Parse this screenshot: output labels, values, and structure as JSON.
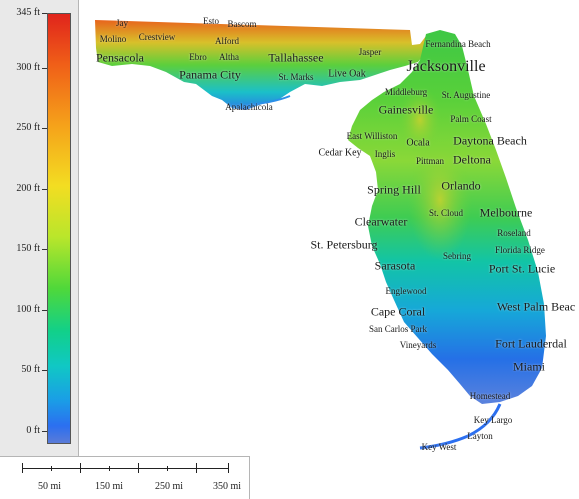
{
  "legend": {
    "unit": "ft",
    "max_label": "345 ft",
    "ticks": [
      {
        "label": "345 ft",
        "value": 345
      },
      {
        "label": "300 ft",
        "value": 300
      },
      {
        "label": "250 ft",
        "value": 250
      },
      {
        "label": "200 ft",
        "value": 200
      },
      {
        "label": "150 ft",
        "value": 150
      },
      {
        "label": "100 ft",
        "value": 100
      },
      {
        "label": "50 ft",
        "value": 50
      },
      {
        "label": "0 ft",
        "value": 0
      }
    ],
    "gradient_colors": [
      "#e0241c",
      "#f5a21a",
      "#f3dd22",
      "#4fd83a",
      "#10c8c4",
      "#2b6ff0"
    ]
  },
  "scale_bar": {
    "labels": [
      "50 mi",
      "150 mi",
      "250 mi",
      "350 mi"
    ]
  },
  "map": {
    "region": "Florida",
    "land_low_color": "#2a6fe0",
    "land_high_color": "#e0241c",
    "cities": [
      {
        "name": "Jay",
        "size": "s1"
      },
      {
        "name": "Esto",
        "size": "s1"
      },
      {
        "name": "Bascom",
        "size": "s1"
      },
      {
        "name": "Molino",
        "size": "s1"
      },
      {
        "name": "Crestview",
        "size": "s1"
      },
      {
        "name": "Alford",
        "size": "s1"
      },
      {
        "name": "Pensacola",
        "size": "s3"
      },
      {
        "name": "Ebro",
        "size": "s1"
      },
      {
        "name": "Altha",
        "size": "s1"
      },
      {
        "name": "Tallahassee",
        "size": "s3"
      },
      {
        "name": "Panama City",
        "size": "s3"
      },
      {
        "name": "St. Marks",
        "size": "s1"
      },
      {
        "name": "Live Oak",
        "size": "s2"
      },
      {
        "name": "Jasper",
        "size": "s1"
      },
      {
        "name": "Fernandina Beach",
        "size": "s1"
      },
      {
        "name": "Jacksonville",
        "size": "s4"
      },
      {
        "name": "Apalachicola",
        "size": "s1"
      },
      {
        "name": "Middleburg",
        "size": "s1"
      },
      {
        "name": "St. Augustine",
        "size": "s1"
      },
      {
        "name": "Gainesville",
        "size": "s3"
      },
      {
        "name": "Palm Coast",
        "size": "s1"
      },
      {
        "name": "East Williston",
        "size": "s1"
      },
      {
        "name": "Daytona Beach",
        "size": "s3"
      },
      {
        "name": "Cedar Key",
        "size": "s2"
      },
      {
        "name": "Ocala",
        "size": "s2"
      },
      {
        "name": "Inglis",
        "size": "s1"
      },
      {
        "name": "Pittman",
        "size": "s1"
      },
      {
        "name": "Deltona",
        "size": "s3"
      },
      {
        "name": "Spring Hill",
        "size": "s3"
      },
      {
        "name": "Orlando",
        "size": "s3"
      },
      {
        "name": "St. Cloud",
        "size": "s1"
      },
      {
        "name": "Melbourne",
        "size": "s3"
      },
      {
        "name": "Clearwater",
        "size": "s3"
      },
      {
        "name": "Roseland",
        "size": "s1"
      },
      {
        "name": "St. Petersburg",
        "size": "s3"
      },
      {
        "name": "Florida Ridge",
        "size": "s1"
      },
      {
        "name": "Sebring",
        "size": "s1"
      },
      {
        "name": "Sarasota",
        "size": "s3"
      },
      {
        "name": "Port St. Lucie",
        "size": "s3"
      },
      {
        "name": "Englewood",
        "size": "s1"
      },
      {
        "name": "West Palm Beac",
        "size": "s3"
      },
      {
        "name": "Cape Coral",
        "size": "s3"
      },
      {
        "name": "San Carlos Park",
        "size": "s1"
      },
      {
        "name": "Fort Lauderdal",
        "size": "s3"
      },
      {
        "name": "Vineyards",
        "size": "s1"
      },
      {
        "name": "Miami",
        "size": "s3"
      },
      {
        "name": "Homestead",
        "size": "s1"
      },
      {
        "name": "Key Largo",
        "size": "s1"
      },
      {
        "name": "Layton",
        "size": "s1"
      },
      {
        "name": "Key West",
        "size": "s1"
      }
    ]
  }
}
